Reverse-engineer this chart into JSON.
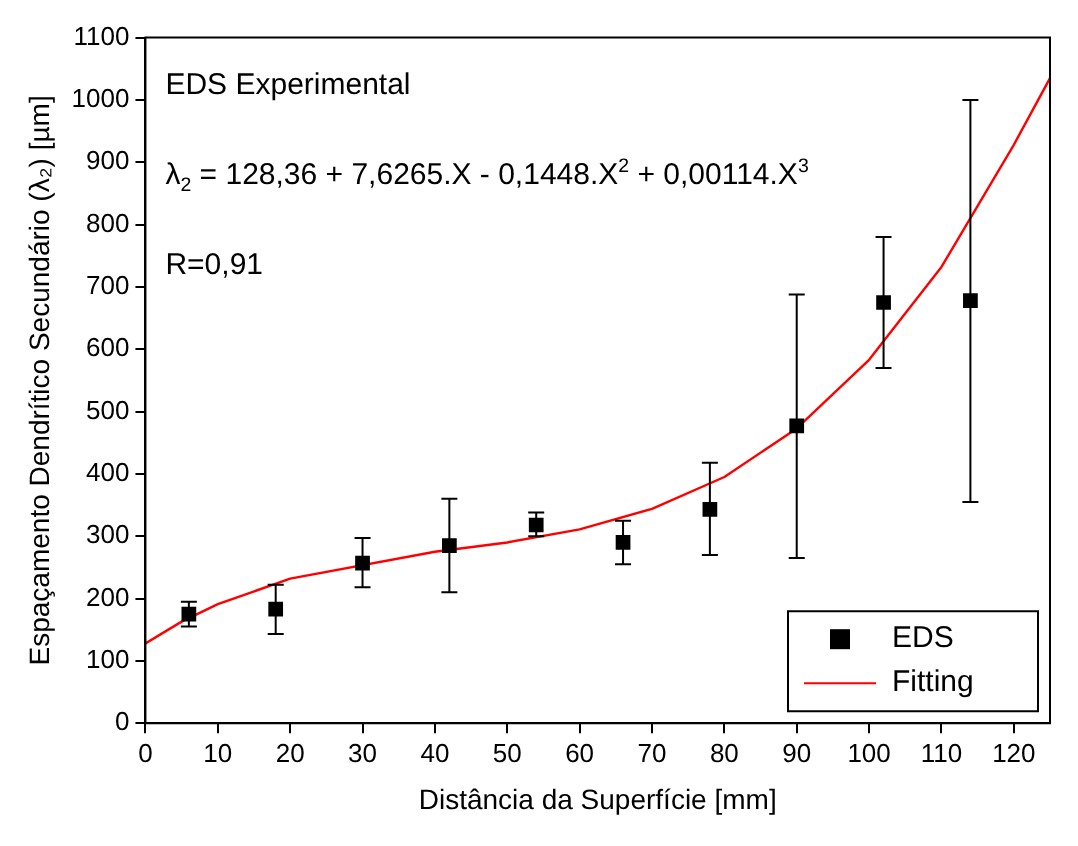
{
  "chart_data": {
    "type": "scatter",
    "xlabel": "Distância da Superfície [mm]",
    "ylabel": "Espaçamento Dendrítico Secundário (λ₂) [µm]",
    "annotations": [
      "EDS Experimental",
      "λ$_{2}$ = 128,36 + 7,6265.X - 0,1448.X$^{2}$ + 0,00114.X$^{3}$",
      "R=0,91"
    ],
    "series": [
      {
        "name": "EDS",
        "type": "scatter",
        "color": "#000000",
        "marker": "square",
        "x": [
          6,
          18,
          30,
          42,
          54,
          66,
          78,
          90,
          102,
          114
        ],
        "values": [
          175,
          183,
          257,
          285,
          318,
          290,
          343,
          477,
          675,
          678
        ],
        "errors": [
          [
            155,
            195
          ],
          [
            143,
            222
          ],
          [
            218,
            297
          ],
          [
            210,
            360
          ],
          [
            300,
            338
          ],
          [
            255,
            325
          ],
          [
            270,
            418
          ],
          [
            265,
            688
          ],
          [
            570,
            780
          ],
          [
            355,
            1000
          ]
        ]
      },
      {
        "name": "Fitting",
        "type": "line",
        "color": "#ff0000",
        "marker": "none",
        "x": [
          0,
          5,
          10,
          20,
          40,
          50,
          60,
          70,
          80,
          90,
          100,
          110,
          120,
          125
        ],
        "values": [
          128,
          163,
          191,
          232,
          275,
          290,
          311,
          344,
          395,
          473,
          583,
          732,
          928,
          1035
        ]
      }
    ],
    "xlim": [
      0,
      125
    ],
    "xticks": [
      0,
      10,
      20,
      30,
      40,
      50,
      60,
      70,
      80,
      90,
      100,
      110,
      120
    ],
    "ylim": [
      0,
      1100
    ],
    "yticks": [
      0,
      100,
      200,
      300,
      400,
      500,
      600,
      700,
      800,
      900,
      1000,
      1100
    ],
    "grid": false,
    "legend": "bottom right"
  }
}
